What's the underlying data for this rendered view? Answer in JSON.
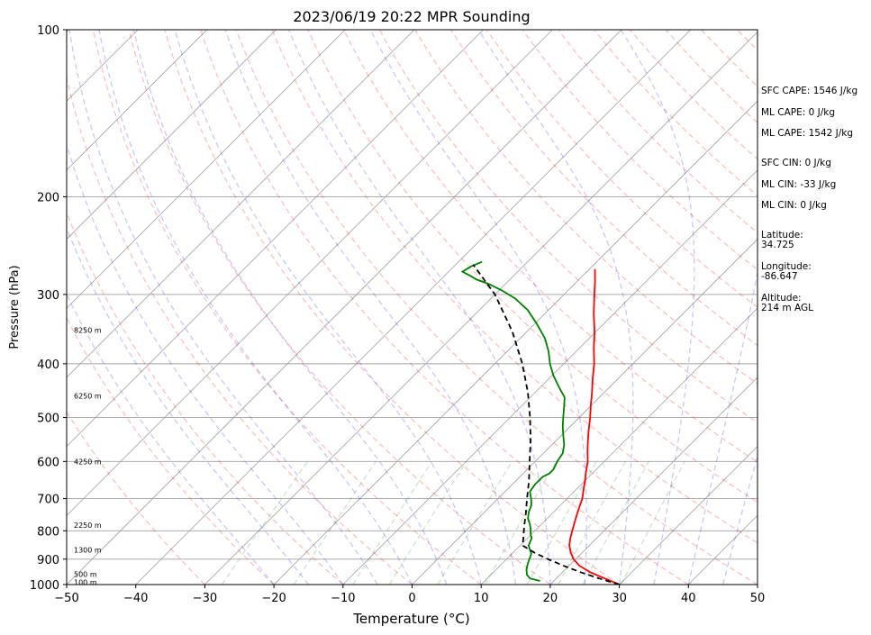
{
  "chart_data": {
    "type": "line",
    "subtype": "skew-t log-p sounding",
    "title": "2023/06/19 20:22 MPR Sounding",
    "xlabel": "Temperature (°C)",
    "ylabel": "Pressure (hPa)",
    "xlim": [
      -50,
      50
    ],
    "ylim": [
      1000,
      100
    ],
    "y_scale": "log",
    "x_ticks": [
      -50,
      -40,
      -30,
      -20,
      -10,
      0,
      10,
      20,
      30,
      40,
      50
    ],
    "x_tick_labels": [
      "−50",
      "−40",
      "−30",
      "−20",
      "−10",
      "0",
      "10",
      "20",
      "30",
      "40",
      "50"
    ],
    "y_ticks": [
      1000,
      900,
      800,
      700,
      600,
      500,
      400,
      300,
      200,
      100
    ],
    "y_tick_labels": [
      "1000",
      "900",
      "800",
      "700",
      "600",
      "500",
      "400",
      "300",
      "200",
      "100"
    ],
    "grid": true,
    "colors": {
      "temperature": "#ff0000",
      "dewpoint": "#008000",
      "parcel": "#000000",
      "dry_adiabats": "#ff9999",
      "moist_adiabats": "#9999ff",
      "mixing_ratio": "#88cc88",
      "isotherms": "#a0a0a0",
      "isobars": "#a0a0a0"
    },
    "series": [
      {
        "style": "solid",
        "points": [
          [
            1000,
            30.0
          ],
          [
            975,
            27.0
          ],
          [
            950,
            24.0
          ],
          [
            925,
            21.5
          ],
          [
            900,
            19.7
          ],
          [
            875,
            18.3
          ],
          [
            850,
            17.1
          ],
          [
            825,
            16.2
          ],
          [
            800,
            15.4
          ],
          [
            775,
            14.6
          ],
          [
            750,
            13.8
          ],
          [
            725,
            13.0
          ],
          [
            700,
            12.2
          ],
          [
            675,
            11.1
          ],
          [
            650,
            10.0
          ],
          [
            625,
            8.8
          ],
          [
            600,
            7.6
          ],
          [
            575,
            6.1
          ],
          [
            550,
            4.6
          ],
          [
            525,
            3.1
          ],
          [
            500,
            1.6
          ],
          [
            475,
            -0.1
          ],
          [
            450,
            -1.8
          ],
          [
            425,
            -3.7
          ],
          [
            400,
            -5.6
          ],
          [
            375,
            -7.9
          ],
          [
            350,
            -10.2
          ],
          [
            325,
            -12.9
          ],
          [
            300,
            -15.6
          ],
          [
            285,
            -17.3
          ],
          [
            270,
            -19.2
          ]
        ]
      },
      {
        "style": "solid",
        "points": [
          [
            985,
            18.0
          ],
          [
            975,
            16.2
          ],
          [
            960,
            15.2
          ],
          [
            940,
            14.4
          ],
          [
            920,
            13.8
          ],
          [
            900,
            13.3
          ],
          [
            880,
            12.8
          ],
          [
            865,
            12.0
          ],
          [
            850,
            11.2
          ],
          [
            825,
            10.6
          ],
          [
            810,
            9.8
          ],
          [
            800,
            9.4
          ],
          [
            780,
            8.4
          ],
          [
            760,
            7.2
          ],
          [
            740,
            6.4
          ],
          [
            720,
            5.8
          ],
          [
            700,
            4.8
          ],
          [
            680,
            3.6
          ],
          [
            660,
            3.3
          ],
          [
            640,
            3.3
          ],
          [
            630,
            3.8
          ],
          [
            620,
            3.8
          ],
          [
            600,
            3.2
          ],
          [
            580,
            2.8
          ],
          [
            560,
            1.8
          ],
          [
            540,
            0.4
          ],
          [
            520,
            -1.0
          ],
          [
            500,
            -2.3
          ],
          [
            480,
            -3.6
          ],
          [
            460,
            -5.0
          ],
          [
            440,
            -7.4
          ],
          [
            420,
            -9.8
          ],
          [
            400,
            -12.0
          ],
          [
            380,
            -14.0
          ],
          [
            360,
            -16.4
          ],
          [
            340,
            -19.5
          ],
          [
            320,
            -23.0
          ],
          [
            305,
            -26.5
          ],
          [
            295,
            -29.6
          ],
          [
            287,
            -32.5
          ],
          [
            282,
            -34.8
          ],
          [
            277,
            -36.5
          ],
          [
            273,
            -38.0
          ],
          [
            267,
            -37.5
          ],
          [
            262,
            -36.6
          ]
        ]
      },
      {
        "style": "dashed",
        "points": [
          [
            1000,
            30.0
          ],
          [
            975,
            26.2
          ],
          [
            950,
            22.6
          ],
          [
            925,
            19.2
          ],
          [
            900,
            16.0
          ],
          [
            875,
            13.0
          ],
          [
            850,
            10.3
          ],
          [
            825,
            9.4
          ],
          [
            800,
            8.4
          ],
          [
            775,
            7.4
          ],
          [
            750,
            6.4
          ],
          [
            700,
            4.2
          ],
          [
            650,
            1.9
          ],
          [
            600,
            -0.8
          ],
          [
            550,
            -3.7
          ],
          [
            500,
            -7.1
          ],
          [
            450,
            -11.1
          ],
          [
            400,
            -16.0
          ],
          [
            350,
            -22.1
          ],
          [
            300,
            -30.0
          ],
          [
            265,
            -37.5
          ]
        ]
      }
    ],
    "height_labels": [
      {
        "pressure": 990,
        "text": "100 m"
      },
      {
        "pressure": 958,
        "text": "500 m"
      },
      {
        "pressure": 866,
        "text": "1300 m"
      },
      {
        "pressure": 782,
        "text": "2250 m"
      },
      {
        "pressure": 600,
        "text": "4250 m"
      },
      {
        "pressure": 457,
        "text": "6250 m"
      },
      {
        "pressure": 348,
        "text": "8250 m"
      }
    ],
    "annotations": [
      "SFC CAPE: 1546 J/kg",
      "ML CAPE: 0 J/kg",
      "ML CAPE: 1542 J/kg",
      "SFC CIN: 0 J/kg",
      "ML CIN: -33 J/kg",
      "ML CIN: 0 J/kg",
      "Latitude:",
      "34.725",
      "Longitude:",
      "-86.647",
      "Altitude:",
      "214 m AGL"
    ]
  }
}
